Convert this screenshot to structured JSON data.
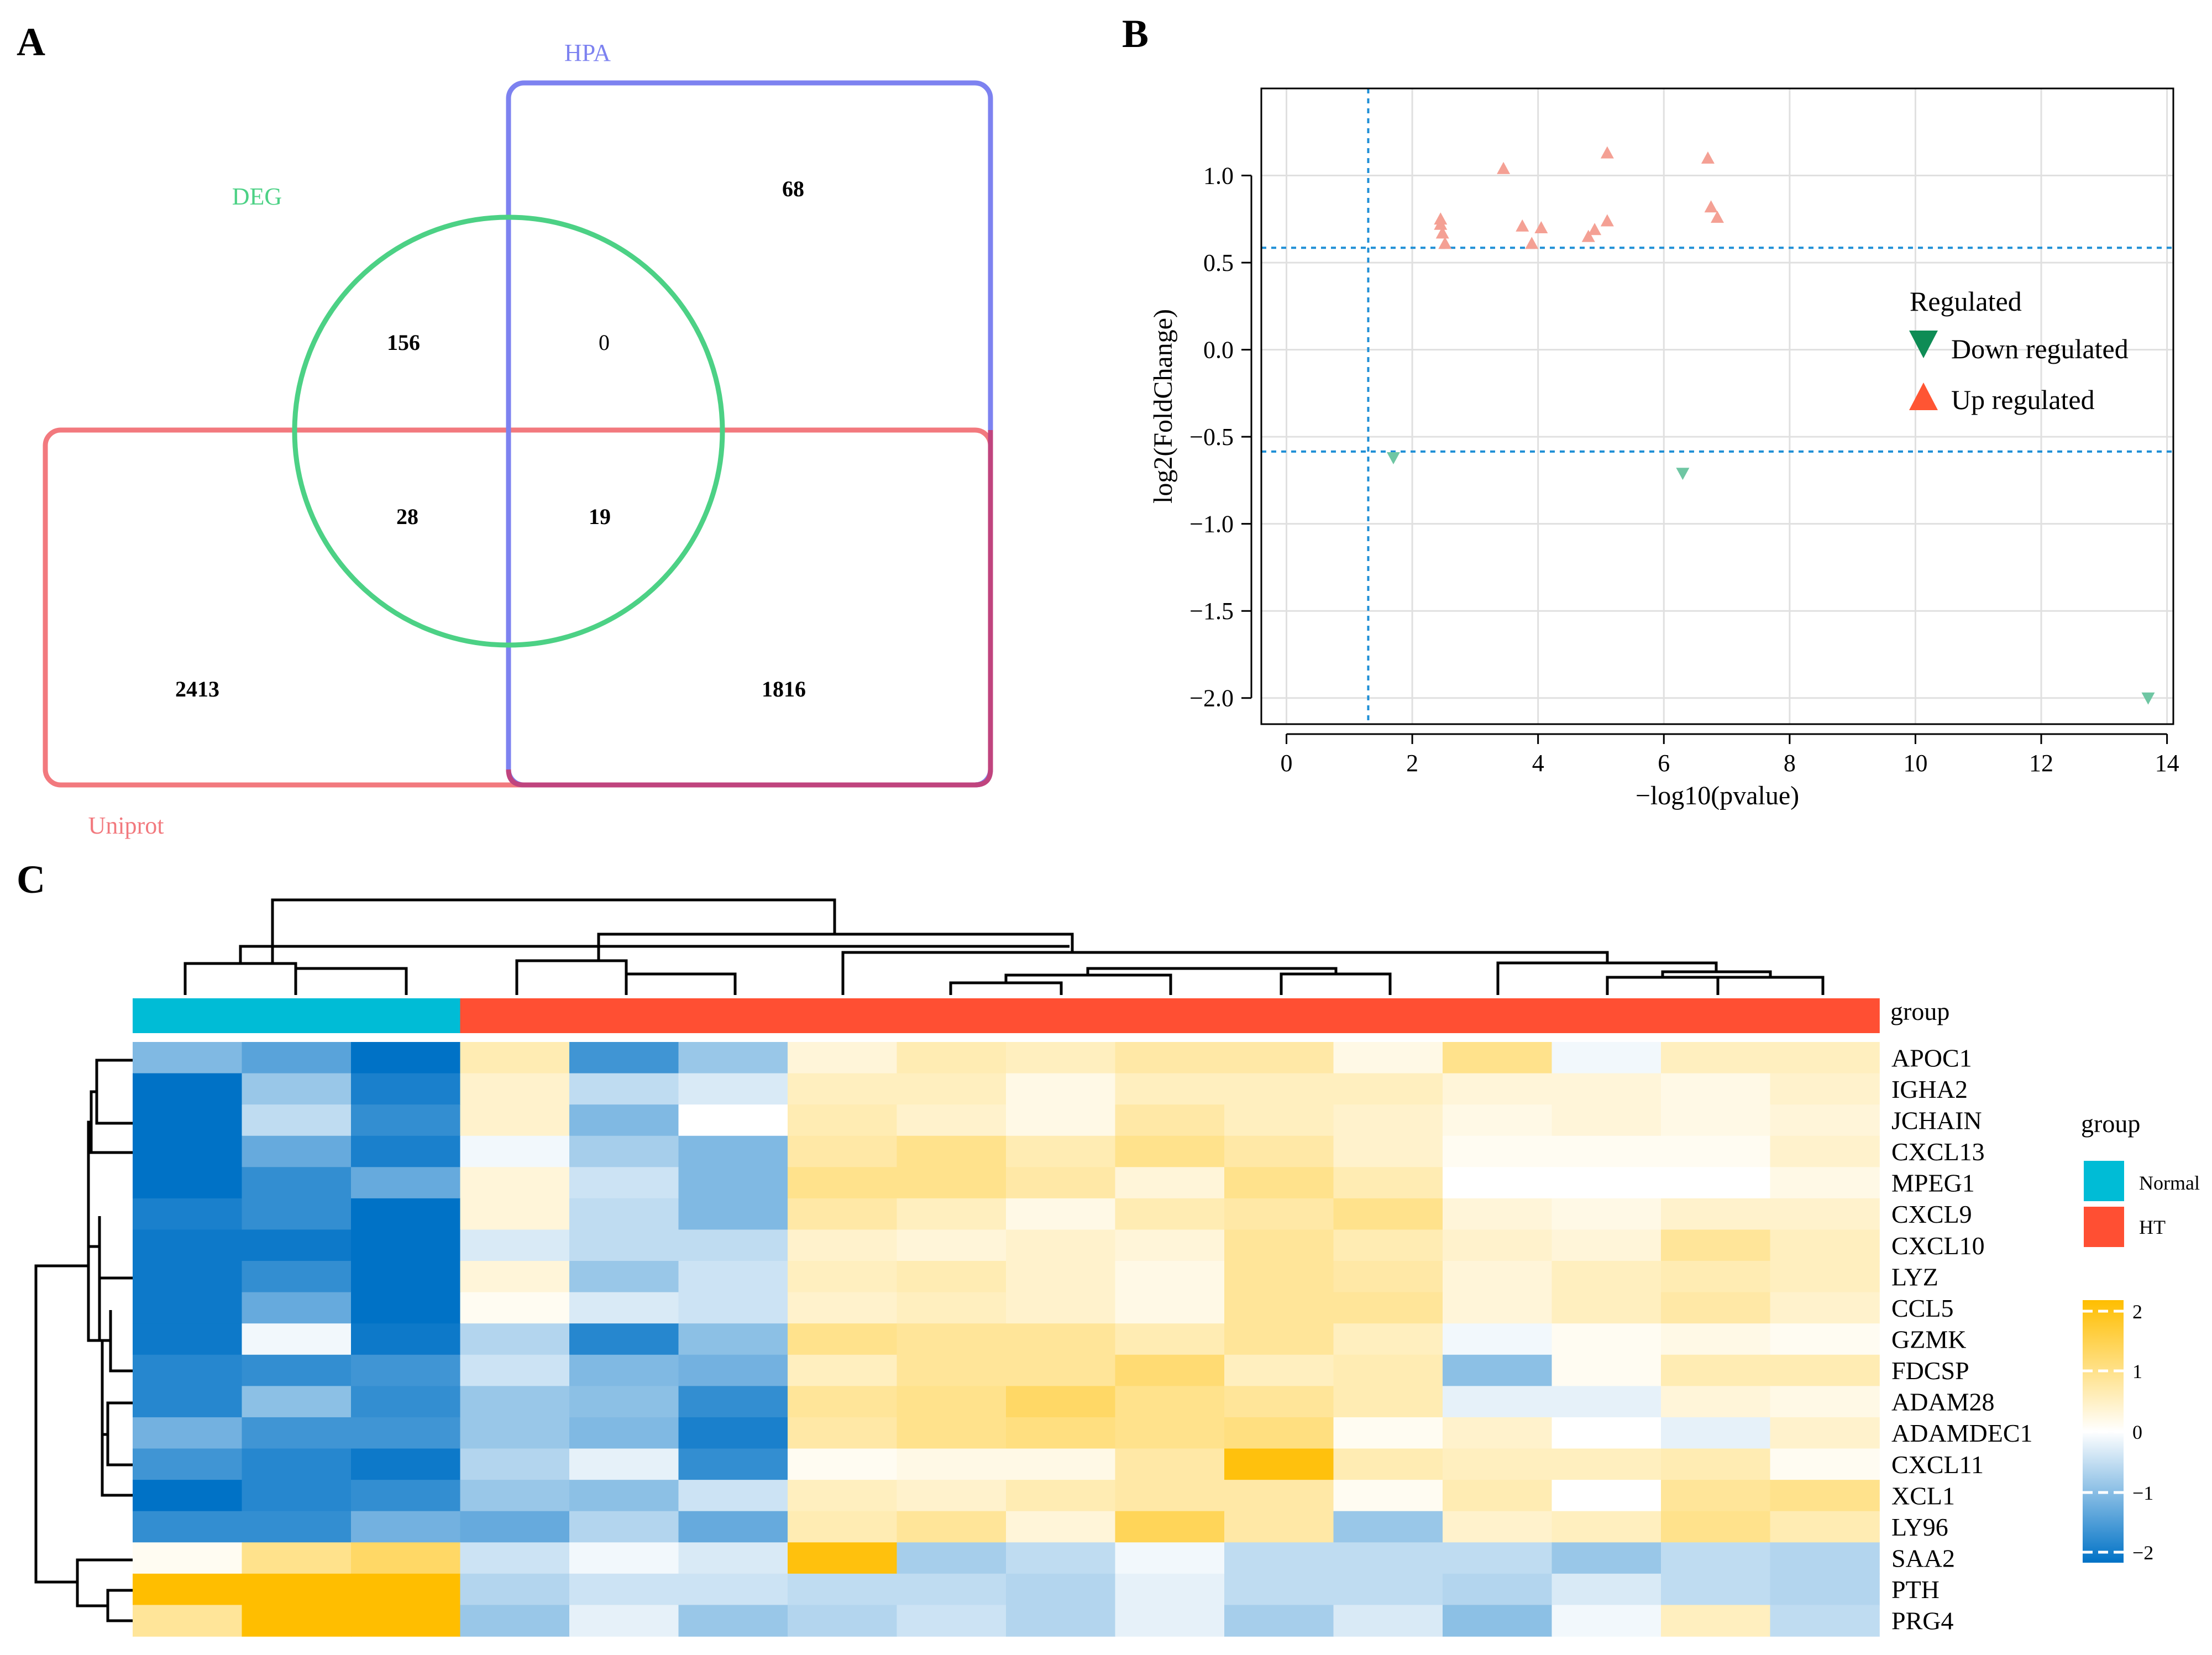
{
  "panel_labels": [
    "A",
    "B",
    "C"
  ],
  "chart_data": [
    {
      "type": "venn",
      "panel": "A",
      "sets": [
        {
          "name": "DEG",
          "color": "#4CD185"
        },
        {
          "name": "HPA",
          "color": "#7D82F0"
        },
        {
          "name": "Uniprot",
          "color": "#F2797E"
        }
      ],
      "regions": [
        {
          "sets": [
            "HPA"
          ],
          "label": "68",
          "value": 68
        },
        {
          "sets": [
            "DEG"
          ],
          "label": "156",
          "value": 156
        },
        {
          "sets": [
            "DEG",
            "HPA"
          ],
          "label": "0",
          "value": 0
        },
        {
          "sets": [
            "DEG",
            "Uniprot"
          ],
          "label": "28",
          "value": 28
        },
        {
          "sets": [
            "DEG",
            "HPA",
            "Uniprot"
          ],
          "label": "19",
          "value": 19
        },
        {
          "sets": [
            "Uniprot"
          ],
          "label": "2413",
          "value": 2413
        },
        {
          "sets": [
            "HPA",
            "Uniprot"
          ],
          "label": "1816",
          "value": 1816
        }
      ]
    },
    {
      "type": "scatter",
      "panel": "B",
      "xlabel": "−log10(pvalue)",
      "ylabel": "log2(FoldChange)",
      "xlim": [
        -0.4,
        14.1
      ],
      "ylim": [
        -2.15,
        1.5
      ],
      "xticks": [
        0,
        2,
        4,
        6,
        8,
        10,
        12,
        14
      ],
      "xtick_labels": [
        "0",
        "2",
        "4",
        "6",
        "8",
        "10",
        "12",
        "14"
      ],
      "yticks": [
        1.0,
        0.5,
        0.0,
        -0.5,
        -1.0,
        -1.5,
        -2.0
      ],
      "ytick_labels": [
        "1.0",
        "0.5",
        "0.0",
        "−0.5",
        "−1.0",
        "−1.5",
        "−2.0"
      ],
      "grid": true,
      "threshold_lines": {
        "x": 1.3,
        "y": [
          0.585,
          -0.585
        ],
        "color": "#1F8FD6"
      },
      "legend": {
        "title": "Regulated",
        "position": "right",
        "entries": [
          {
            "label": "Down regulated",
            "color": "#0E8C55",
            "marker": "triangle-down"
          },
          {
            "label": "Up regulated",
            "color": "#FF5533",
            "marker": "triangle-up"
          }
        ]
      },
      "series": [
        {
          "name": "Up regulated",
          "color": "#F4A094",
          "points": [
            [
              2.45,
              0.75
            ],
            [
              2.45,
              0.72
            ],
            [
              2.48,
              0.67
            ],
            [
              2.52,
              0.61
            ],
            [
              3.45,
              1.04
            ],
            [
              3.75,
              0.71
            ],
            [
              3.9,
              0.61
            ],
            [
              4.05,
              0.7
            ],
            [
              4.8,
              0.65
            ],
            [
              4.9,
              0.69
            ],
            [
              5.1,
              1.13
            ],
            [
              5.1,
              0.74
            ],
            [
              6.7,
              1.1
            ],
            [
              6.75,
              0.82
            ],
            [
              6.85,
              0.76
            ]
          ]
        },
        {
          "name": "Down regulated",
          "color": "#6FC6A3",
          "points": [
            [
              1.7,
              -0.62
            ],
            [
              6.3,
              -0.71
            ],
            [
              13.7,
              -2.0
            ]
          ]
        }
      ]
    },
    {
      "type": "heatmap",
      "panel": "C",
      "rows": [
        "APOC1",
        "IGHA2",
        "JCHAIN",
        "CXCL13",
        "MPEG1",
        "CXCL9",
        "CXCL10",
        "LYZ",
        "CCL5",
        "GZMK",
        "FDCSP",
        "ADAM28",
        "ADAMDEC1",
        "CXCL11",
        "XCL1",
        "LY96",
        "SAA2",
        "PTH",
        "PRG4"
      ],
      "group_title": "group",
      "groups": [
        {
          "name": "Normal",
          "color": "#00BCD6",
          "columns": 3
        },
        {
          "name": "HT",
          "color": "#FF4F33",
          "columns": 13
        }
      ],
      "column_groups": [
        "Normal",
        "Normal",
        "Normal",
        "HT",
        "HT",
        "HT",
        "HT",
        "HT",
        "HT",
        "HT",
        "HT",
        "HT",
        "HT",
        "HT",
        "HT",
        "HT"
      ],
      "color_scale": {
        "min": -2,
        "max": 2,
        "low": "#0072C6",
        "mid": "#FFFFFF",
        "high": "#FFBE00"
      },
      "legend_ticks": [
        "2",
        "1",
        "0",
        "−1",
        "−2"
      ],
      "values": [
        [
          -1.0,
          -1.3,
          -2.0,
          0.6,
          -1.5,
          -0.8,
          0.3,
          0.6,
          0.5,
          0.7,
          0.7,
          0.2,
          0.9,
          -0.1,
          0.5,
          0.5
        ],
        [
          -2.0,
          -0.8,
          -1.8,
          0.4,
          -0.5,
          -0.3,
          0.5,
          0.5,
          0.2,
          0.5,
          0.5,
          0.5,
          0.3,
          0.3,
          0.2,
          0.4
        ],
        [
          -2.0,
          -0.5,
          -1.6,
          0.4,
          -1.0,
          0.0,
          0.6,
          0.4,
          0.2,
          0.7,
          0.5,
          0.4,
          0.2,
          0.3,
          0.2,
          0.3
        ],
        [
          -2.0,
          -1.2,
          -1.8,
          -0.1,
          -0.7,
          -1.0,
          0.7,
          0.9,
          0.6,
          0.9,
          0.7,
          0.4,
          0.1,
          0.1,
          0.1,
          0.4
        ],
        [
          -2.0,
          -1.6,
          -1.2,
          0.3,
          -0.4,
          -1.0,
          0.9,
          0.9,
          0.7,
          0.3,
          0.9,
          0.6,
          0.0,
          0.0,
          0.0,
          0.2
        ],
        [
          -1.8,
          -1.6,
          -2.0,
          0.3,
          -0.5,
          -1.0,
          0.7,
          0.5,
          0.2,
          0.6,
          0.7,
          0.9,
          0.3,
          0.2,
          0.4,
          0.4
        ],
        [
          -1.9,
          -1.9,
          -2.0,
          -0.3,
          -0.5,
          -0.5,
          0.4,
          0.3,
          0.4,
          0.3,
          0.8,
          0.6,
          0.4,
          0.3,
          0.8,
          0.5
        ],
        [
          -1.9,
          -1.6,
          -2.0,
          0.3,
          -0.8,
          -0.4,
          0.5,
          0.6,
          0.4,
          0.2,
          0.8,
          0.7,
          0.3,
          0.5,
          0.6,
          0.5
        ],
        [
          -1.9,
          -1.2,
          -2.0,
          0.1,
          -0.3,
          -0.4,
          0.4,
          0.5,
          0.4,
          0.2,
          0.8,
          0.8,
          0.3,
          0.5,
          0.7,
          0.4
        ],
        [
          -1.9,
          -0.1,
          -1.9,
          -0.6,
          -1.7,
          -0.9,
          0.9,
          0.8,
          0.8,
          0.6,
          0.8,
          0.5,
          -0.1,
          0.1,
          0.2,
          0.1
        ],
        [
          -1.7,
          -1.6,
          -1.5,
          -0.4,
          -1.0,
          -1.1,
          0.5,
          0.8,
          0.8,
          1.1,
          0.5,
          0.6,
          -0.9,
          0.1,
          0.6,
          0.6
        ],
        [
          -1.7,
          -0.9,
          -1.6,
          -0.8,
          -0.9,
          -1.6,
          0.8,
          0.9,
          1.2,
          0.9,
          0.8,
          0.6,
          -0.2,
          -0.2,
          0.3,
          0.2
        ],
        [
          -1.1,
          -1.5,
          -1.5,
          -0.8,
          -1.0,
          -1.8,
          0.7,
          0.9,
          1.0,
          0.9,
          1.0,
          0.1,
          0.4,
          0.0,
          -0.2,
          0.4
        ],
        [
          -1.5,
          -1.7,
          -1.9,
          -0.6,
          -0.2,
          -1.6,
          0.1,
          0.2,
          0.2,
          0.7,
          1.9,
          0.6,
          0.5,
          0.5,
          0.6,
          0.1
        ],
        [
          -2.0,
          -1.7,
          -1.6,
          -0.8,
          -0.9,
          -0.4,
          0.5,
          0.4,
          0.6,
          0.7,
          0.7,
          0.1,
          0.6,
          0.0,
          0.8,
          0.9
        ],
        [
          -1.6,
          -1.6,
          -1.1,
          -1.2,
          -0.6,
          -1.2,
          0.6,
          0.8,
          0.3,
          1.3,
          0.7,
          -0.8,
          0.4,
          0.5,
          0.9,
          0.6
        ],
        [
          0.1,
          0.9,
          1.2,
          -0.4,
          -0.1,
          -0.3,
          1.9,
          -0.7,
          -0.5,
          -0.1,
          -0.5,
          -0.5,
          -0.5,
          -0.8,
          -0.5,
          -0.6
        ],
        [
          2.0,
          2.0,
          2.0,
          -0.6,
          -0.4,
          -0.4,
          -0.5,
          -0.5,
          -0.6,
          -0.2,
          -0.5,
          -0.5,
          -0.6,
          -0.3,
          -0.5,
          -0.6
        ],
        [
          0.8,
          2.0,
          2.0,
          -0.8,
          -0.2,
          -0.8,
          -0.6,
          -0.4,
          -0.6,
          -0.2,
          -0.7,
          -0.3,
          -0.9,
          -0.1,
          0.5,
          -0.5
        ]
      ]
    }
  ]
}
